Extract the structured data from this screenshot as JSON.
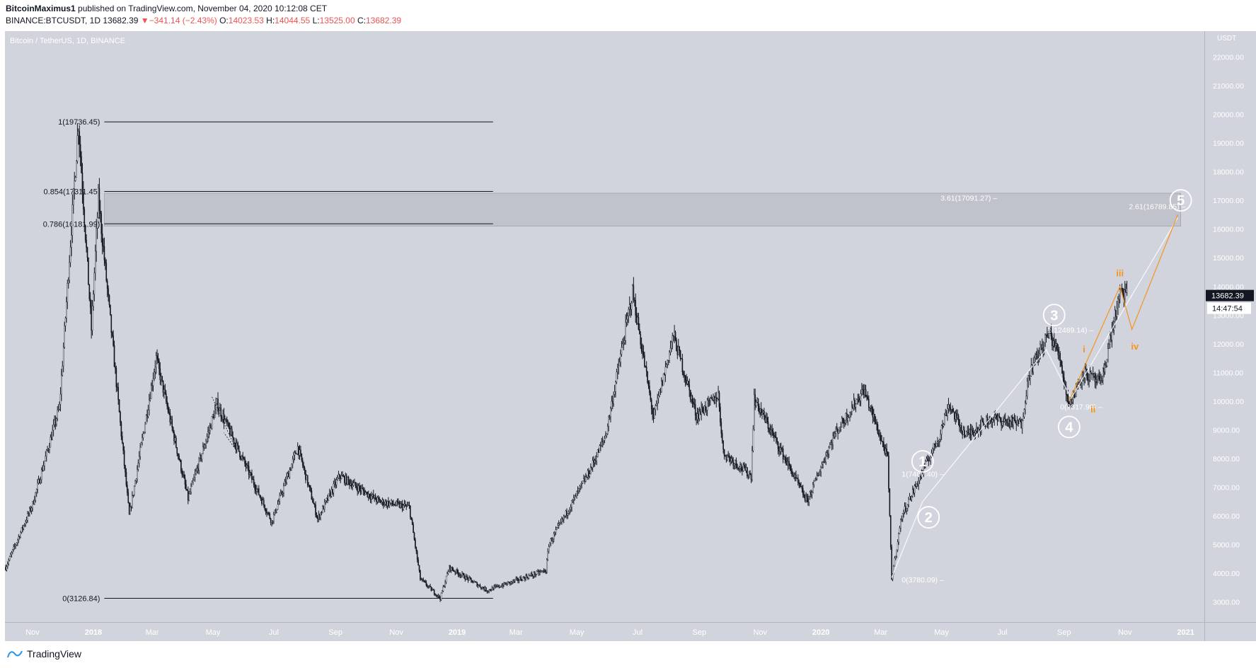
{
  "header": {
    "author": "BitcoinMaximus1",
    "published_text": "published on TradingView.com, November 04, 2020 10:12:08 CET",
    "symbol": "BINANCE:BTCUSDT, 1D",
    "last": "13682.39",
    "change_arrow": "▼",
    "change": "−341.14 (−2.43%)",
    "o_label": "O:",
    "o_value": "14023.53",
    "h_label": "H:",
    "h_value": "14044.55",
    "l_label": "L:",
    "l_value": "13525.00",
    "c_label": "C:",
    "c_value": "13682.39"
  },
  "footer": {
    "brand": "TradingView"
  },
  "colors": {
    "plot_bg": "#d1d4dc",
    "candle": "#131722",
    "fib_line": "#131722",
    "white_annot": "#ffffff",
    "orange_annot": "#f7931a",
    "zone": "#b2b5be",
    "negative": "#ef5350",
    "price_tag_bg": "#131722"
  },
  "chart_data": {
    "type": "candlestick",
    "title": "Bitcoin / TetherUS, 1D, BINANCE",
    "currency_label": "USDT",
    "y_range": [
      2300,
      22900
    ],
    "y_ticks": [
      3000,
      4000,
      5000,
      6000,
      7000,
      8000,
      9000,
      10000,
      11000,
      12000,
      13000,
      14000,
      15000,
      16000,
      17000,
      18000,
      19000,
      20000,
      21000,
      22000
    ],
    "x_ticks": [
      {
        "label": "Nov",
        "date": "2017-11-01"
      },
      {
        "label": "2018",
        "date": "2018-01-01",
        "bold": true
      },
      {
        "label": "Mar",
        "date": "2018-03-01"
      },
      {
        "label": "May",
        "date": "2018-05-01"
      },
      {
        "label": "Jul",
        "date": "2018-07-01"
      },
      {
        "label": "Sep",
        "date": "2018-09-01"
      },
      {
        "label": "Nov",
        "date": "2018-11-01"
      },
      {
        "label": "2019",
        "date": "2019-01-01",
        "bold": true
      },
      {
        "label": "Mar",
        "date": "2019-03-01"
      },
      {
        "label": "May",
        "date": "2019-05-01"
      },
      {
        "label": "Jul",
        "date": "2019-07-01"
      },
      {
        "label": "Sep",
        "date": "2019-09-01"
      },
      {
        "label": "Nov",
        "date": "2019-11-01"
      },
      {
        "label": "2020",
        "date": "2020-01-01",
        "bold": true
      },
      {
        "label": "Mar",
        "date": "2020-03-01"
      },
      {
        "label": "May",
        "date": "2020-05-01"
      },
      {
        "label": "Jul",
        "date": "2020-07-01"
      },
      {
        "label": "Sep",
        "date": "2020-09-01"
      },
      {
        "label": "Nov",
        "date": "2020-11-01"
      },
      {
        "label": "2021",
        "date": "2021-01-01",
        "bold": true
      }
    ],
    "price_keypoints": [
      [
        "2017-10-05",
        4200
      ],
      [
        "2017-11-01",
        6400
      ],
      [
        "2017-11-28",
        9800
      ],
      [
        "2017-12-17",
        19700
      ],
      [
        "2017-12-30",
        12500
      ],
      [
        "2018-01-06",
        17100
      ],
      [
        "2018-02-06",
        6000
      ],
      [
        "2018-03-05",
        11500
      ],
      [
        "2018-04-06",
        6600
      ],
      [
        "2018-05-05",
        9900
      ],
      [
        "2018-06-29",
        5800
      ],
      [
        "2018-07-25",
        8400
      ],
      [
        "2018-08-14",
        5900
      ],
      [
        "2018-09-05",
        7400
      ],
      [
        "2018-10-15",
        6500
      ],
      [
        "2018-11-14",
        6300
      ],
      [
        "2018-11-25",
        3800
      ],
      [
        "2018-12-15",
        3130
      ],
      [
        "2018-12-24",
        4200
      ],
      [
        "2019-01-31",
        3400
      ],
      [
        "2019-03-31",
        4100
      ],
      [
        "2019-04-03",
        5000
      ],
      [
        "2019-05-13",
        7500
      ],
      [
        "2019-05-30",
        8800
      ],
      [
        "2019-06-26",
        13800
      ],
      [
        "2019-07-17",
        9400
      ],
      [
        "2019-08-06",
        12300
      ],
      [
        "2019-08-29",
        9500
      ],
      [
        "2019-09-20",
        10200
      ],
      [
        "2019-09-25",
        8200
      ],
      [
        "2019-10-23",
        7400
      ],
      [
        "2019-10-26",
        10100
      ],
      [
        "2019-12-18",
        6500
      ],
      [
        "2020-01-14",
        8800
      ],
      [
        "2020-02-13",
        10400
      ],
      [
        "2020-03-08",
        8000
      ],
      [
        "2020-03-12",
        3800
      ],
      [
        "2020-03-22",
        6000
      ],
      [
        "2020-04-29",
        8800
      ],
      [
        "2020-05-08",
        9900
      ],
      [
        "2020-05-25",
        8800
      ],
      [
        "2020-06-20",
        9400
      ],
      [
        "2020-07-20",
        9200
      ],
      [
        "2020-07-28",
        11000
      ],
      [
        "2020-08-17",
        12400
      ],
      [
        "2020-08-28",
        11500
      ],
      [
        "2020-09-04",
        10100
      ],
      [
        "2020-09-08",
        10000
      ],
      [
        "2020-09-20",
        11000
      ],
      [
        "2020-10-08",
        10600
      ],
      [
        "2020-10-21",
        12800
      ],
      [
        "2020-10-27",
        13700
      ],
      [
        "2020-10-31",
        13800
      ],
      [
        "2020-11-04",
        13680
      ]
    ],
    "fib_levels": [
      {
        "label": "1(19736.45)",
        "value": 19736.45
      },
      {
        "label": "0.854(17311.45)",
        "value": 17311.45
      },
      {
        "label": "0.786(16181.99)",
        "value": 16181.99
      },
      {
        "label": "0(3126.84)",
        "value": 3126.84
      }
    ],
    "fib_range": {
      "from": "2018-01-12",
      "to": "2019-02-06"
    },
    "resistance_zone": {
      "from_date": "2018-01-12",
      "to_date": "2020-12-27",
      "low": 16100,
      "high": 17250
    },
    "right_annotations": [
      {
        "label": "3.61(17091.27) –",
        "date": "2020-04-30",
        "value": 17091.27,
        "color": "white_annot"
      },
      {
        "label": "2.61(16789.85) –",
        "date": "2020-11-05",
        "value": 16789.85,
        "color": "white_annot"
      },
      {
        "label": "1(12489.14) –",
        "date": "2020-08-15",
        "value": 12489.14,
        "color": "white_annot"
      },
      {
        "label": "0(9817.90) –",
        "date": "2020-08-28",
        "value": 9817.9,
        "color": "white_annot"
      },
      {
        "label": "1(7467.40) –",
        "date": "2020-03-22",
        "value": 7467.4,
        "color": "white_annot"
      },
      {
        "label": "0(3780.09) –",
        "date": "2020-03-22",
        "value": 3780.09,
        "color": "white_annot"
      }
    ],
    "main_waves": [
      {
        "label": "1",
        "date": "2020-04-12",
        "value": 7900
      },
      {
        "label": "2",
        "date": "2020-04-18",
        "value": 5950
      },
      {
        "label": "3",
        "date": "2020-08-22",
        "value": 13000
      },
      {
        "label": "4",
        "date": "2020-09-06",
        "value": 9100
      },
      {
        "label": "5",
        "date": "2020-12-27",
        "value": 17000
      }
    ],
    "sub_waves": [
      {
        "label": "i",
        "date": "2020-09-21",
        "value": 11700
      },
      {
        "label": "ii",
        "date": "2020-09-30",
        "value": 9600
      },
      {
        "label": "iii",
        "date": "2020-10-27",
        "value": 14350
      },
      {
        "label": "iv",
        "date": "2020-11-11",
        "value": 11800
      }
    ],
    "main_wave_path": [
      [
        "2020-03-12",
        3850
      ],
      [
        "2020-04-12",
        6500
      ],
      [
        "2020-08-14",
        11800
      ],
      [
        "2020-09-08",
        10100
      ],
      [
        "2020-12-24",
        16400
      ]
    ],
    "sub_wave_path": [
      [
        "2020-09-06",
        10000
      ],
      [
        "2020-10-27",
        14000
      ],
      [
        "2020-11-08",
        12500
      ],
      [
        "2020-12-24",
        16500
      ]
    ],
    "last_price": {
      "label": "13682.39",
      "value": 13682.39
    },
    "countdown": "14:47:54"
  }
}
